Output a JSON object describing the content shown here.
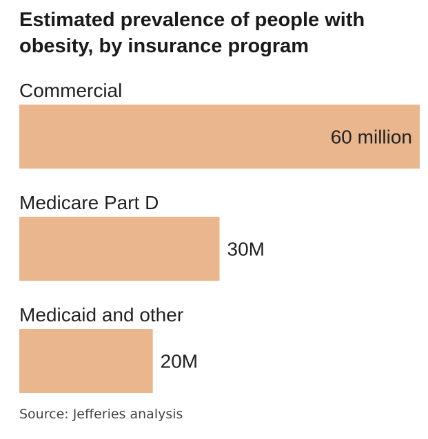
{
  "chart_data": {
    "type": "bar",
    "orientation": "horizontal",
    "title": "Estimated prevalence of people with obesity, by insurance program",
    "categories": [
      "Commercial",
      "Medicare Part D",
      "Medicaid and other"
    ],
    "values": [
      60,
      30,
      20
    ],
    "value_labels": [
      "60 million",
      "30M",
      "20M"
    ],
    "unit": "million people",
    "xlim": [
      0,
      60
    ],
    "bar_color": "#E9B68D",
    "source": "Source: Jefferies analysis"
  }
}
